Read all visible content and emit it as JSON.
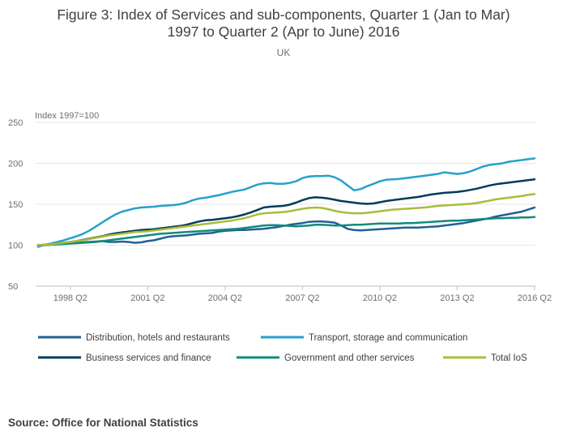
{
  "title_line1": "Figure 3: Index of Services and sub-components, Quarter 1 (Jan to Mar)",
  "title_line2": "1997 to Quarter 2 (Apr to June) 2016",
  "subtitle": "UK",
  "source": "Source: Office for National Statistics",
  "chart_data": {
    "type": "line",
    "ylabel": "Index 1997=100",
    "ylim": [
      50,
      250
    ],
    "yticks": [
      50,
      100,
      150,
      200,
      250
    ],
    "xlim": [
      0,
      77
    ],
    "xticks": [
      {
        "label": "1998 Q2",
        "index": 5
      },
      {
        "label": "2001 Q2",
        "index": 17
      },
      {
        "label": "2004 Q2",
        "index": 29
      },
      {
        "label": "2007 Q2",
        "index": 41
      },
      {
        "label": "2010 Q2",
        "index": 53
      },
      {
        "label": "2013 Q2",
        "index": 65
      },
      {
        "label": "2016 Q2",
        "index": 77
      }
    ],
    "grid": true,
    "legend_position": "bottom",
    "series": [
      {
        "name": "Distribution, hotels and restaurants",
        "color": "#206095",
        "values": [
          100,
          100.5,
          101,
          101.5,
          102,
          102.5,
          103,
          103.5,
          104,
          104.5,
          105,
          104,
          104,
          104.5,
          104,
          103,
          103.5,
          105,
          106,
          108,
          110,
          111,
          111.5,
          112,
          113,
          114,
          114.5,
          115,
          116.5,
          117.5,
          118,
          118.5,
          118.5,
          119,
          119.5,
          120,
          121,
          122,
          123.5,
          125,
          126,
          127,
          128.5,
          129,
          129,
          128.5,
          127.5,
          124,
          120,
          118.5,
          118,
          118.5,
          119,
          119.5,
          120,
          120.5,
          121,
          121.5,
          121.5,
          121.5,
          122,
          122.5,
          123,
          124,
          125,
          126,
          127,
          128.5,
          130,
          131.5,
          133,
          135,
          136.5,
          138,
          139.5,
          141,
          143.5,
          146
        ]
      },
      {
        "name": "Transport, storage and communication",
        "color": "#27a0cc",
        "values": [
          98,
          100.5,
          102,
          104,
          106,
          108.5,
          111,
          114,
          118,
          123,
          128,
          133,
          137.5,
          141,
          143,
          145,
          146,
          146.5,
          147,
          148,
          148.5,
          149,
          150,
          152,
          155,
          157,
          158,
          159.5,
          161,
          163,
          165,
          166.5,
          168,
          171,
          174,
          175.5,
          176,
          175,
          175,
          176,
          178,
          182,
          184,
          184.5,
          184.5,
          185,
          183,
          179,
          173,
          167,
          168.5,
          172,
          175,
          178,
          180,
          180.5,
          181,
          182,
          183,
          184,
          185,
          186,
          187,
          189,
          188,
          187,
          188,
          190,
          193,
          196,
          198,
          199,
          200,
          202,
          203,
          204,
          205,
          206
        ]
      },
      {
        "name": "Business services and finance",
        "color": "#003c57",
        "values": [
          100,
          100.5,
          101,
          102,
          103,
          104,
          105,
          106.5,
          108,
          109.5,
          111,
          113,
          114.5,
          115.5,
          116.5,
          117.5,
          118.5,
          119,
          119.5,
          120.5,
          121.5,
          122.5,
          123.5,
          125,
          127,
          129,
          130.5,
          131,
          132,
          133,
          134,
          135.5,
          137.5,
          140,
          143,
          146,
          147,
          147.5,
          148,
          149.5,
          152,
          155,
          157.5,
          158.5,
          158,
          157,
          155.5,
          154,
          153,
          152,
          151,
          150.5,
          151,
          152.5,
          154,
          155,
          156,
          157,
          158,
          159,
          160.5,
          162,
          163,
          164,
          164.5,
          165,
          166,
          167.5,
          169,
          171,
          173,
          174.5,
          175.5,
          176.5,
          177.5,
          178.5,
          179.5,
          180.5
        ]
      },
      {
        "name": "Government and other services",
        "color": "#118c7b",
        "values": [
          100,
          100,
          100.5,
          101,
          101.5,
          102,
          102.5,
          103,
          103.5,
          104,
          105,
          106,
          107,
          108,
          109,
          110,
          111,
          112,
          113,
          114,
          114.5,
          115,
          115.5,
          116,
          116.5,
          117,
          117.5,
          118,
          118.5,
          119,
          119.5,
          120,
          121,
          122,
          123,
          124,
          124.5,
          124.5,
          124,
          123.5,
          123,
          123.5,
          124,
          125,
          125,
          124.5,
          124,
          124,
          124.5,
          125,
          125,
          125.5,
          126,
          126.5,
          126.5,
          126.5,
          126.5,
          127,
          127,
          127.5,
          128,
          128.5,
          129,
          129.5,
          130,
          130,
          130.5,
          131,
          131.5,
          132,
          132.5,
          133,
          133,
          133.5,
          133.5,
          134,
          134,
          134.5
        ]
      },
      {
        "name": "Total IoS",
        "color": "#a8bd3a",
        "values": [
          100,
          100.5,
          101,
          102,
          103,
          104,
          105,
          106,
          107.5,
          109,
          110.5,
          112,
          113,
          114,
          115,
          116,
          116.5,
          117,
          118,
          119,
          120,
          121,
          122,
          123,
          124,
          125,
          126,
          127,
          128,
          129,
          130,
          131.5,
          133,
          135,
          137.5,
          139,
          139.5,
          140,
          140.5,
          141.5,
          143,
          144.5,
          145.5,
          146,
          145.5,
          144,
          142,
          140.5,
          139.5,
          139,
          139,
          139.5,
          140.5,
          141.5,
          142.5,
          143.5,
          144,
          144.5,
          145,
          145.5,
          146,
          147,
          148,
          148.5,
          149,
          149.5,
          150,
          150.5,
          151.5,
          153,
          154.5,
          156,
          157,
          158,
          159,
          160,
          161.5,
          162.5
        ]
      }
    ]
  }
}
